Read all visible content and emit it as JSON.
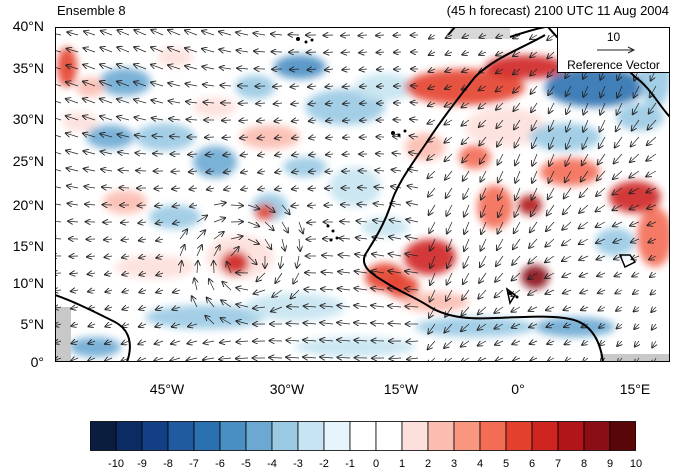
{
  "header": {
    "left_title": "Ensemble 8",
    "right_title": "(45 h forecast) 2100 UTC 11 Aug 2004"
  },
  "axes": {
    "y_ticks": [
      "40°N",
      "35°N",
      "30°N",
      "25°N",
      "20°N",
      "15°N",
      "10°N",
      "5°N",
      "0°"
    ],
    "x_ticks": [
      "45°W",
      "30°W",
      "15°W",
      "0°",
      "15°E"
    ]
  },
  "reference_vector": {
    "value": "10",
    "label": "Reference Vector"
  },
  "colorbar": {
    "labels": [
      "-10",
      "-9",
      "-8",
      "-7",
      "-6",
      "-5",
      "-4",
      "-3",
      "-2",
      "-1",
      "0",
      "1",
      "2",
      "3",
      "4",
      "5",
      "6",
      "7",
      "8",
      "9",
      "10"
    ],
    "colors": [
      "#0b1d3f",
      "#0d2b63",
      "#133f84",
      "#1f5b9e",
      "#2b71b0",
      "#4a8fc4",
      "#6ba9d3",
      "#99c9e3",
      "#c6e4f1",
      "#e6f4fb",
      "#ffffff",
      "#ffffff",
      "#fde0dc",
      "#fbbdb0",
      "#f89680",
      "#f36c55",
      "#e4402e",
      "#cf2521",
      "#b11519",
      "#8a0f14",
      "#5a0508"
    ]
  },
  "colors": {
    "land_outline": "#000000",
    "missing": "#c8c8c8",
    "vector": "#222222"
  }
}
